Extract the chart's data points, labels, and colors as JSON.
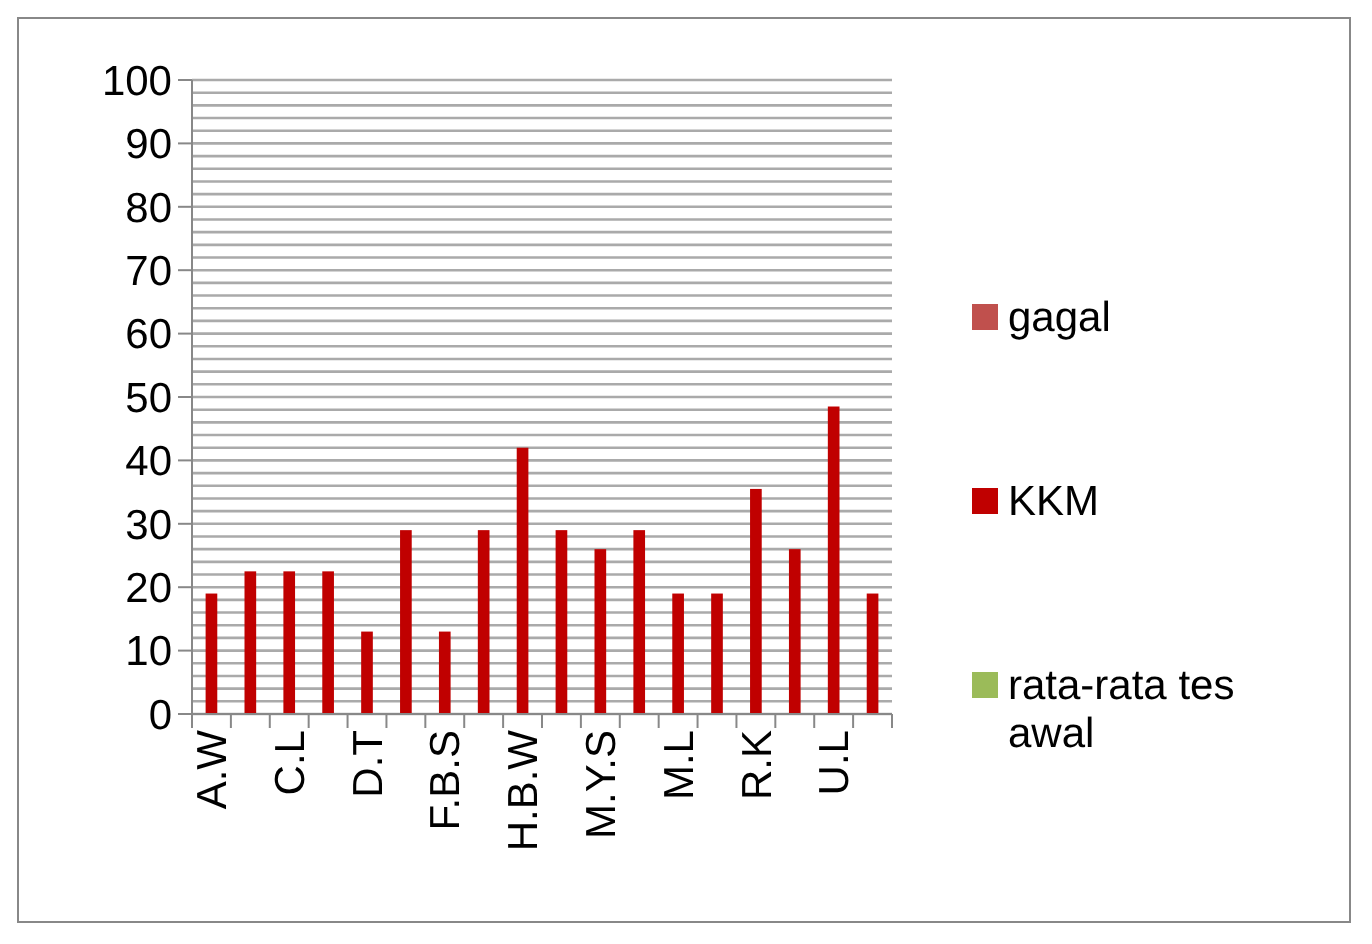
{
  "chart_data": {
    "type": "bar",
    "categories": [
      "A.W",
      null,
      "C.L",
      null,
      "D.T",
      null,
      "F.B.S",
      null,
      "H.B.W",
      null,
      "M.Y.S",
      null,
      "M.L",
      null,
      "R.K",
      null,
      "U.L",
      null
    ],
    "series": [
      {
        "name": "gagal",
        "color": "#c0504d",
        "values": [
          null,
          null,
          null,
          null,
          null,
          null,
          null,
          null,
          null,
          null,
          null,
          null,
          null,
          null,
          null,
          null,
          null,
          null
        ]
      },
      {
        "name": "KKM",
        "color": "#c00000",
        "values": [
          19,
          22.5,
          22.5,
          22.5,
          13,
          29,
          13,
          29,
          42,
          29,
          26,
          29,
          19,
          19,
          35.5,
          26,
          48.5,
          19
        ]
      },
      {
        "name": "rata-rata tes awal",
        "color": "#9bbb59",
        "values": [
          null,
          null,
          null,
          null,
          null,
          null,
          null,
          null,
          null,
          null,
          null,
          null,
          null,
          null,
          null,
          null,
          null,
          null
        ]
      }
    ],
    "ylim": [
      0,
      100
    ],
    "yticks": [
      0,
      10,
      20,
      30,
      40,
      50,
      60,
      70,
      80,
      90,
      100
    ],
    "grid": "y",
    "legend": "right"
  }
}
